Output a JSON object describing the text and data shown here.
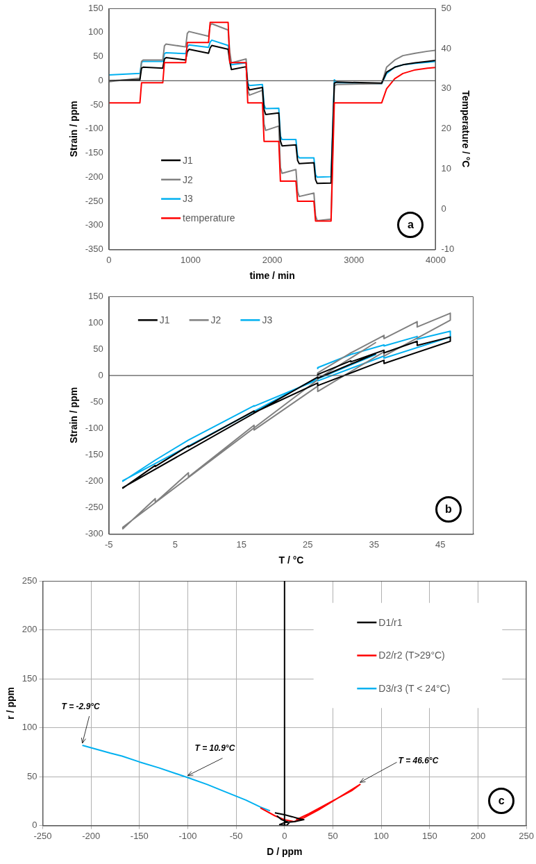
{
  "chart_data": [
    {
      "type": "line",
      "xlabel": "time / min",
      "ylabel": "Strain / ppm",
      "y2label": "Temperature / °C",
      "xlim": [
        0,
        4000
      ],
      "xticks": [
        0,
        1000,
        2000,
        3000,
        4000
      ],
      "ylim": [
        -350,
        150
      ],
      "yticks": [
        -350,
        -300,
        -250,
        -200,
        -150,
        -100,
        -50,
        0,
        50,
        100,
        150
      ],
      "y2lim": [
        -10,
        50
      ],
      "y2ticks": [
        -10,
        0,
        10,
        20,
        30,
        40,
        50
      ],
      "grid": false,
      "legend": "bottom left",
      "marker": "none",
      "line_style": "solid",
      "annotations": [
        "a"
      ],
      "ref_lines": [
        {
          "axis": "y",
          "value": 0,
          "color": "#595959"
        }
      ],
      "x": [
        0,
        380,
        400,
        420,
        660,
        680,
        700,
        940,
        960,
        980,
        1220,
        1240,
        1260,
        1460,
        1480,
        1500,
        1680,
        1700,
        1720,
        1880,
        1900,
        1920,
        2080,
        2100,
        2120,
        2290,
        2310,
        2330,
        2510,
        2530,
        2550,
        2720,
        2760,
        2790,
        3340,
        3400,
        3500,
        3600,
        3750,
        3900,
        4000
      ],
      "series": [
        {
          "name": "J1",
          "color": "#000000",
          "values": [
            0,
            2,
            26,
            28,
            26,
            45,
            48,
            43,
            60,
            65,
            57,
            68,
            73,
            65,
            40,
            23,
            29,
            -10,
            -19,
            -14,
            -60,
            -70,
            -67,
            -125,
            -135,
            -133,
            -165,
            -172,
            -170,
            -205,
            -213,
            -212,
            -5,
            -3,
            -5,
            18,
            28,
            33,
            37,
            40,
            42
          ]
        },
        {
          "name": "J2",
          "color": "#808080",
          "values": [
            -2,
            5,
            40,
            43,
            43,
            72,
            76,
            70,
            98,
            102,
            92,
            115,
            118,
            105,
            60,
            37,
            45,
            -20,
            -30,
            -20,
            -90,
            -103,
            -94,
            -180,
            -192,
            -184,
            -230,
            -240,
            -233,
            -280,
            -290,
            -287,
            -10,
            -8,
            -6,
            28,
            43,
            52,
            57,
            61,
            63
          ]
        },
        {
          "name": "J3",
          "color": "#00b0f0",
          "values": [
            12,
            15,
            38,
            40,
            40,
            56,
            58,
            56,
            70,
            74,
            69,
            80,
            84,
            73,
            50,
            33,
            37,
            -5,
            -10,
            -8,
            -50,
            -58,
            -57,
            -115,
            -122,
            -122,
            -155,
            -160,
            -160,
            -195,
            -200,
            -199,
            2,
            -4,
            -6,
            15,
            28,
            33,
            36,
            38,
            40
          ]
        },
        {
          "name": "temperature",
          "color": "#ff0000",
          "axis": "y2",
          "x": [
            0,
            380,
            400,
            660,
            680,
            940,
            960,
            1220,
            1240,
            1460,
            1480,
            1680,
            1700,
            1880,
            1900,
            2080,
            2100,
            2290,
            2310,
            2510,
            2530,
            2720,
            2760,
            3340,
            3400,
            3500,
            3600,
            3750,
            3900,
            4000
          ],
          "values": [
            26.5,
            26.5,
            31.5,
            31.5,
            36.5,
            36.5,
            41.5,
            41.5,
            46.5,
            46.5,
            36.5,
            36.5,
            26.5,
            26.5,
            16.9,
            16.9,
            7,
            7,
            2,
            2,
            -2.9,
            -2.9,
            26.5,
            26.5,
            30,
            32.5,
            33.8,
            34.7,
            35.1,
            35.3
          ]
        }
      ]
    },
    {
      "type": "line",
      "xlabel": "T / °C",
      "ylabel": "Strain / ppm",
      "xlim": [
        -5,
        50
      ],
      "xticks": [
        -5,
        5,
        15,
        25,
        35,
        45
      ],
      "ylim": [
        -300,
        150
      ],
      "yticks": [
        -300,
        -250,
        -200,
        -150,
        -100,
        -50,
        0,
        50,
        100,
        150
      ],
      "grid": false,
      "legend": "top left",
      "marker": "none",
      "line_style": "solid",
      "annotations": [
        "b"
      ],
      "ref_lines": [
        {
          "axis": "y",
          "value": 0,
          "color": "#595959"
        }
      ],
      "series": [
        {
          "name": "J1",
          "color": "#000000",
          "x": [
            26.5,
            26.5,
            31.5,
            31.5,
            36.5,
            36.5,
            41.5,
            41.5,
            46.5,
            46.5,
            36.5,
            36.5,
            26.5,
            26.5,
            16.9,
            16.9,
            7,
            7,
            2,
            2,
            -2.9,
            -2.9,
            26.5,
            26.5,
            35.3
          ],
          "values": [
            0,
            2,
            28,
            26,
            48,
            43,
            65,
            57,
            73,
            65,
            23,
            29,
            -19,
            -14,
            -70,
            -67,
            -135,
            -133,
            -172,
            -170,
            -213,
            -212,
            -3,
            -5,
            42
          ]
        },
        {
          "name": "J2",
          "color": "#808080",
          "x": [
            26.5,
            26.5,
            31.5,
            31.5,
            36.5,
            36.5,
            41.5,
            41.5,
            46.5,
            46.5,
            36.5,
            36.5,
            26.5,
            26.5,
            16.9,
            16.9,
            7,
            7,
            2,
            2,
            -2.9,
            -2.9,
            26.5,
            26.5,
            35.3
          ],
          "values": [
            -2,
            5,
            43,
            43,
            76,
            70,
            102,
            92,
            118,
            105,
            37,
            45,
            -30,
            -20,
            -103,
            -94,
            -192,
            -184,
            -240,
            -233,
            -290,
            -287,
            -8,
            -6,
            63
          ]
        },
        {
          "name": "J3",
          "color": "#00b0f0",
          "x": [
            26.5,
            26.5,
            31.5,
            31.5,
            36.5,
            36.5,
            41.5,
            41.5,
            46.5,
            46.5,
            36.5,
            36.5,
            26.5,
            26.5,
            16.9,
            16.9,
            7,
            7,
            2,
            2,
            -2.9,
            -2.9,
            26.5,
            26.5,
            35.3
          ],
          "values": [
            12,
            15,
            40,
            40,
            58,
            56,
            74,
            69,
            84,
            73,
            33,
            37,
            -10,
            -8,
            -58,
            -57,
            -122,
            -122,
            -160,
            -160,
            -200,
            -199,
            -4,
            -6,
            40
          ]
        }
      ]
    },
    {
      "type": "line",
      "xlabel": "D / ppm",
      "ylabel": "r / ppm",
      "xlim": [
        -250,
        250
      ],
      "xticks": [
        -250,
        -200,
        -150,
        -100,
        -50,
        0,
        50,
        100,
        150,
        200,
        250
      ],
      "ylim": [
        0,
        250
      ],
      "yticks": [
        0,
        50,
        100,
        150,
        200,
        250
      ],
      "grid": true,
      "legend": "top right",
      "marker": "none",
      "line_style": "solid",
      "ref_lines": [
        {
          "axis": "x",
          "value": 0,
          "color": "#000000"
        }
      ],
      "annotations": [
        {
          "text": "T = -2.9°C",
          "x": -209,
          "y": 82
        },
        {
          "text": "T = 10.9°C",
          "x": -100,
          "y": 49
        },
        {
          "text": "T = 46.6°C",
          "x": 78,
          "y": 42
        },
        "c"
      ],
      "series": [
        {
          "name": "D1/r1",
          "color": "#000000",
          "x": [
            -10,
            0,
            8,
            15,
            20,
            10,
            0,
            -5,
            2,
            5,
            -3,
            -8
          ],
          "values": [
            13,
            11,
            9,
            7,
            6,
            4,
            3,
            1,
            0,
            3,
            6,
            10
          ]
        },
        {
          "name": "D2/r2 (T>29°C)",
          "color": "#ff0000",
          "x": [
            -25,
            -10,
            0,
            10,
            20,
            35,
            50,
            65,
            78,
            70,
            55,
            40,
            25,
            12
          ],
          "values": [
            18,
            10,
            6,
            4,
            8,
            16,
            25,
            34,
            42,
            36,
            28,
            20,
            12,
            6
          ]
        },
        {
          "name": "D3/r3 (T < 24°C)",
          "color": "#00b0f0",
          "x": [
            -209,
            -180,
            -168,
            -150,
            -130,
            -100,
            -80,
            -65,
            -40,
            -25,
            -15
          ],
          "values": [
            82,
            74,
            71,
            65,
            59,
            49,
            42,
            36,
            26,
            19,
            15
          ]
        }
      ]
    }
  ]
}
